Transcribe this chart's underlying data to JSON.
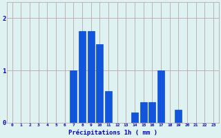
{
  "hours": [
    0,
    1,
    2,
    3,
    4,
    5,
    6,
    7,
    8,
    9,
    10,
    11,
    12,
    13,
    14,
    15,
    16,
    17,
    18,
    19,
    20,
    21,
    22,
    23
  ],
  "values": [
    0,
    0,
    0,
    0,
    0,
    0,
    0,
    1.0,
    1.75,
    1.75,
    1.5,
    0.6,
    0,
    0,
    0.2,
    0.4,
    0.4,
    1.0,
    0,
    0.25,
    0,
    0,
    0,
    0
  ],
  "bar_color": "#1155dd",
  "bar_edge_color": "#0033bb",
  "background_color": "#dff2f2",
  "grid_color": "#b8a8a8",
  "text_color": "#0000cc",
  "xlabel": "Précipitations 1h ( mm )",
  "ylim": [
    0,
    2.3
  ],
  "yticks": [
    0,
    1,
    2
  ],
  "xlim": [
    -0.6,
    23.6
  ]
}
